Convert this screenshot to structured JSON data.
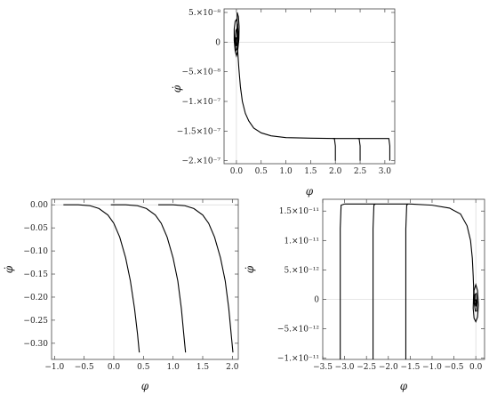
{
  "chart_data": [
    {
      "type": "line",
      "xlabel": "φ",
      "ylabel": "φ̇",
      "xlim": [
        -0.25,
        3.2
      ],
      "ylim": [
        -2.05e-07,
        5.6e-08
      ],
      "xticks": [
        {
          "v": 0.0,
          "label": "0.0"
        },
        {
          "v": 0.5,
          "label": "0.5"
        },
        {
          "v": 1.0,
          "label": "1.0"
        },
        {
          "v": 1.5,
          "label": "1.5"
        },
        {
          "v": 2.0,
          "label": "2.0"
        },
        {
          "v": 2.5,
          "label": "2.5"
        },
        {
          "v": 3.0,
          "label": "3.0"
        }
      ],
      "yticks": [
        {
          "v": 5e-08,
          "label": "5.×10⁻⁸"
        },
        {
          "v": 0,
          "label": "0"
        },
        {
          "v": -5e-08,
          "label": "−5.×10⁻⁸"
        },
        {
          "v": -1e-07,
          "label": "−1.×10⁻⁷"
        },
        {
          "v": -1.5e-07,
          "label": "−1.5×10⁻⁷"
        },
        {
          "v": -2e-07,
          "label": "−2.×10⁻⁷"
        }
      ],
      "series": [
        {
          "x": [
            3.1,
            3.1,
            3.08,
            3.0,
            2.5,
            2.0,
            1.5,
            1.0,
            0.7,
            0.5,
            0.35,
            0.25,
            0.18,
            0.12,
            0.08,
            0.05,
            0.03,
            0.02,
            0.015,
            0.015
          ],
          "y": [
            -2e-07,
            -1.75e-07,
            -1.625e-07,
            -1.625e-07,
            -1.625e-07,
            -1.625e-07,
            -1.62e-07,
            -1.61e-07,
            -1.58e-07,
            -1.53e-07,
            -1.45e-07,
            -1.33e-07,
            -1.2e-07,
            -1e-07,
            -7.5e-08,
            -4.5e-08,
            -2e-08,
            0,
            3e-08,
            5e-08
          ]
        },
        {
          "x": [
            2.5,
            2.5,
            2.48,
            2.45
          ],
          "y": [
            -2e-07,
            -1.75e-07,
            -1.625e-07,
            -1.625e-07
          ]
        },
        {
          "x": [
            2.0,
            2.0,
            1.98,
            1.95
          ],
          "y": [
            -2e-07,
            -1.75e-07,
            -1.625e-07,
            -1.625e-07
          ]
        },
        {
          "x": [
            0.015,
            0.04,
            0.055,
            0.05,
            0.025,
            0.0,
            -0.025,
            -0.045,
            -0.045,
            -0.025,
            0.0,
            0.025,
            0.035,
            0.03,
            0.01,
            -0.01,
            -0.025,
            -0.025,
            -0.01,
            0.005,
            0.015,
            0.015,
            0.005,
            -0.005,
            -0.01,
            -0.005,
            0.0
          ],
          "y": [
            5e-08,
            4.3e-08,
            2.6e-08,
            5e-09,
            -1.5e-08,
            -2.3e-08,
            -1.5e-08,
            3e-09,
            2.2e-08,
            3.5e-08,
            3.8e-08,
            3e-08,
            1.5e-08,
            0,
            -1.2e-08,
            -1.4e-08,
            -5e-09,
            8e-09,
            2e-08,
            2.2e-08,
            1.3e-08,
            0,
            -6e-09,
            -6e-09,
            2e-09,
            8e-09,
            6e-09
          ]
        }
      ]
    },
    {
      "type": "line",
      "xlabel": "φ",
      "ylabel": "φ̇",
      "xlim": [
        -1.05,
        2.1
      ],
      "ylim": [
        -0.335,
        0.012
      ],
      "xticks": [
        {
          "v": -1.0,
          "label": "−1.0"
        },
        {
          "v": -0.5,
          "label": "−0.5"
        },
        {
          "v": 0.0,
          "label": "0.0"
        },
        {
          "v": 0.5,
          "label": "0.5"
        },
        {
          "v": 1.0,
          "label": "1.0"
        },
        {
          "v": 1.5,
          "label": "1.5"
        },
        {
          "v": 2.0,
          "label": "2.0"
        }
      ],
      "yticks": [
        {
          "v": 0.0,
          "label": "0.00"
        },
        {
          "v": -0.05,
          "label": "−0.05"
        },
        {
          "v": -0.1,
          "label": "−0.10"
        },
        {
          "v": -0.15,
          "label": "−0.15"
        },
        {
          "v": -0.2,
          "label": "−0.20"
        },
        {
          "v": -0.25,
          "label": "−0.25"
        },
        {
          "v": -0.3,
          "label": "−0.30"
        }
      ],
      "series": [
        {
          "x": [
            -0.85,
            -0.6,
            -0.4,
            -0.25,
            -0.1,
            0.0,
            0.1,
            0.2,
            0.28,
            0.35,
            0.4,
            0.43
          ],
          "y": [
            0.0,
            0.0,
            -0.002,
            -0.008,
            -0.022,
            -0.04,
            -0.07,
            -0.115,
            -0.165,
            -0.225,
            -0.28,
            -0.32
          ]
        },
        {
          "x": [
            -0.05,
            0.2,
            0.4,
            0.55,
            0.7,
            0.8,
            0.9,
            1.0,
            1.08,
            1.14,
            1.18,
            1.21
          ],
          "y": [
            0.0,
            0.0,
            -0.002,
            -0.008,
            -0.022,
            -0.04,
            -0.07,
            -0.115,
            -0.165,
            -0.225,
            -0.28,
            -0.32
          ]
        },
        {
          "x": [
            0.75,
            1.0,
            1.2,
            1.35,
            1.5,
            1.6,
            1.7,
            1.8,
            1.88,
            1.94,
            1.98,
            2.01
          ],
          "y": [
            0.0,
            0.0,
            -0.002,
            -0.008,
            -0.022,
            -0.04,
            -0.07,
            -0.115,
            -0.165,
            -0.225,
            -0.28,
            -0.32
          ]
        }
      ]
    },
    {
      "type": "line",
      "xlabel": "φ",
      "ylabel": "φ̇",
      "xlim": [
        -3.5,
        0.2
      ],
      "ylim": [
        -1.02e-11,
        1.7e-11
      ],
      "xticks": [
        {
          "v": -3.5,
          "label": "−3.5"
        },
        {
          "v": -3.0,
          "label": "−3.0"
        },
        {
          "v": -2.5,
          "label": "−2.5"
        },
        {
          "v": -2.0,
          "label": "−2.0"
        },
        {
          "v": -1.5,
          "label": "−1.5"
        },
        {
          "v": -1.0,
          "label": "−1.0"
        },
        {
          "v": -0.5,
          "label": "−0.5"
        },
        {
          "v": 0.0,
          "label": "0.0"
        }
      ],
      "yticks": [
        {
          "v": 1.5e-11,
          "label": "1.5×10⁻¹¹"
        },
        {
          "v": 1e-11,
          "label": "1.×10⁻¹¹"
        },
        {
          "v": 5e-12,
          "label": "5.×10⁻¹²"
        },
        {
          "v": 0,
          "label": "0"
        },
        {
          "v": -5e-12,
          "label": "−5.×10⁻¹²"
        },
        {
          "v": -1e-11,
          "label": "−1.×10⁻¹¹"
        }
      ],
      "series": [
        {
          "x": [
            -3.1,
            -3.1,
            -3.08,
            -3.0,
            -2.5,
            -2.0,
            -1.5,
            -1.0,
            -0.6,
            -0.35,
            -0.2,
            -0.12,
            -0.08,
            -0.06,
            -0.05,
            -0.05
          ],
          "y": [
            -1.02e-11,
            1.2e-11,
            1.6e-11,
            1.62e-11,
            1.62e-11,
            1.62e-11,
            1.62e-11,
            1.6e-11,
            1.55e-11,
            1.45e-11,
            1.25e-11,
            1e-11,
            7e-12,
            4e-12,
            2e-12,
            1e-12
          ]
        },
        {
          "x": [
            -2.35,
            -2.35,
            -2.33,
            -2.3
          ],
          "y": [
            -1.02e-11,
            1.2e-11,
            1.6e-11,
            1.62e-11
          ]
        },
        {
          "x": [
            -1.6,
            -1.6,
            -1.58,
            -1.55
          ],
          "y": [
            -1.02e-11,
            1.2e-11,
            1.6e-11,
            1.62e-11
          ]
        },
        {
          "x": [
            -0.05,
            -0.06,
            -0.04,
            0.0,
            0.04,
            0.06,
            0.04,
            0.0,
            -0.04,
            -0.04,
            -0.01,
            0.02,
            0.03,
            0.01,
            -0.02,
            -0.02,
            0.0,
            0.01,
            0.0
          ],
          "y": [
            1e-12,
            -1.5e-12,
            -3.2e-12,
            -3.8e-12,
            -3e-12,
            -1e-12,
            1.5e-12,
            2.5e-12,
            1.5e-12,
            -5e-13,
            -2e-12,
            -2e-12,
            -5e-13,
            1e-12,
            8e-13,
            -5e-13,
            -1.2e-12,
            -5e-13,
            0.0
          ]
        }
      ]
    }
  ]
}
